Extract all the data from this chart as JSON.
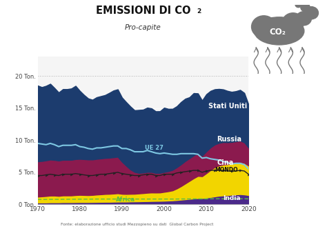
{
  "years": [
    1970,
    1971,
    1972,
    1973,
    1974,
    1975,
    1976,
    1977,
    1978,
    1979,
    1980,
    1981,
    1982,
    1983,
    1984,
    1985,
    1986,
    1987,
    1988,
    1989,
    1990,
    1991,
    1992,
    1993,
    1994,
    1995,
    1996,
    1997,
    1998,
    1999,
    2000,
    2001,
    2002,
    2003,
    2004,
    2005,
    2006,
    2007,
    2008,
    2009,
    2010,
    2011,
    2012,
    2013,
    2014,
    2015,
    2016,
    2017,
    2018,
    2019,
    2020
  ],
  "india": [
    0.3,
    0.3,
    0.3,
    0.32,
    0.32,
    0.32,
    0.34,
    0.34,
    0.34,
    0.35,
    0.36,
    0.36,
    0.36,
    0.37,
    0.38,
    0.39,
    0.4,
    0.4,
    0.42,
    0.43,
    0.44,
    0.44,
    0.46,
    0.47,
    0.48,
    0.5,
    0.51,
    0.53,
    0.54,
    0.55,
    0.57,
    0.6,
    0.63,
    0.68,
    0.74,
    0.8,
    0.86,
    0.92,
    0.98,
    0.98,
    1.05,
    1.15,
    1.25,
    1.35,
    1.4,
    1.45,
    1.5,
    1.55,
    1.6,
    1.55,
    1.45
  ],
  "china": [
    0.9,
    0.95,
    1.0,
    1.05,
    1.05,
    1.0,
    1.05,
    1.05,
    1.05,
    1.1,
    1.12,
    1.1,
    1.08,
    1.1,
    1.15,
    1.18,
    1.22,
    1.24,
    1.26,
    1.3,
    1.2,
    1.18,
    1.18,
    1.18,
    1.22,
    1.25,
    1.3,
    1.32,
    1.3,
    1.3,
    1.38,
    1.45,
    1.55,
    1.8,
    2.1,
    2.45,
    2.8,
    3.15,
    3.45,
    3.4,
    3.8,
    4.2,
    4.55,
    4.7,
    4.8,
    4.8,
    4.9,
    4.95,
    5.0,
    4.9,
    4.6
  ],
  "russia": [
    5.5,
    5.5,
    5.55,
    5.6,
    5.55,
    5.5,
    5.55,
    5.55,
    5.55,
    5.6,
    5.6,
    5.58,
    5.55,
    5.52,
    5.55,
    5.58,
    5.6,
    5.62,
    5.65,
    5.68,
    5.0,
    4.4,
    3.8,
    3.4,
    3.2,
    3.2,
    3.25,
    3.2,
    3.05,
    3.05,
    3.1,
    3.12,
    3.2,
    3.3,
    3.4,
    3.5,
    3.52,
    3.55,
    3.55,
    3.2,
    3.4,
    3.52,
    3.52,
    3.52,
    3.5,
    3.42,
    3.32,
    3.32,
    3.32,
    3.2,
    2.8
  ],
  "usa": [
    11.8,
    11.5,
    11.6,
    11.8,
    11.2,
    10.6,
    11.0,
    11.0,
    11.1,
    11.4,
    10.6,
    10.0,
    9.5,
    9.3,
    9.6,
    9.7,
    9.8,
    10.1,
    10.4,
    10.5,
    10.0,
    9.9,
    9.8,
    9.6,
    9.8,
    9.8,
    10.0,
    9.9,
    9.6,
    9.6,
    10.0,
    9.7,
    9.5,
    9.5,
    9.7,
    9.7,
    9.5,
    9.7,
    9.3,
    8.6,
    8.9,
    8.8,
    8.6,
    8.4,
    8.2,
    8.0,
    7.8,
    7.8,
    7.9,
    7.7,
    6.7
  ],
  "ue27": [
    9.5,
    9.4,
    9.3,
    9.5,
    9.3,
    9.0,
    9.2,
    9.2,
    9.2,
    9.3,
    9.0,
    8.9,
    8.7,
    8.6,
    8.8,
    8.8,
    8.9,
    9.0,
    9.1,
    9.1,
    8.7,
    8.7,
    8.5,
    8.2,
    8.2,
    8.2,
    8.4,
    8.2,
    8.0,
    7.9,
    8.0,
    7.9,
    7.8,
    7.8,
    7.9,
    7.9,
    7.9,
    7.9,
    7.8,
    7.2,
    7.3,
    7.1,
    7.0,
    6.9,
    6.7,
    6.5,
    6.3,
    6.4,
    6.4,
    6.2,
    5.5
  ],
  "mondo": [
    4.5,
    4.5,
    4.6,
    4.7,
    4.6,
    4.5,
    4.7,
    4.7,
    4.7,
    4.8,
    4.7,
    4.6,
    4.5,
    4.5,
    4.6,
    4.7,
    4.7,
    4.8,
    4.9,
    5.0,
    4.8,
    4.7,
    4.6,
    4.5,
    4.5,
    4.6,
    4.7,
    4.7,
    4.5,
    4.5,
    4.7,
    4.7,
    4.7,
    4.9,
    5.0,
    5.1,
    5.2,
    5.3,
    5.3,
    5.0,
    5.2,
    5.3,
    5.3,
    5.3,
    5.3,
    5.2,
    5.2,
    5.2,
    5.3,
    5.2,
    4.7
  ],
  "africa_line": [
    0.78,
    0.78,
    0.78,
    0.79,
    0.79,
    0.79,
    0.8,
    0.8,
    0.81,
    0.81,
    0.82,
    0.82,
    0.82,
    0.83,
    0.84,
    0.84,
    0.84,
    0.84,
    0.84,
    0.84,
    0.84,
    0.84,
    0.84,
    0.84,
    0.84,
    0.84,
    0.84,
    0.84,
    0.84,
    0.84,
    0.84,
    0.84,
    0.84,
    0.84,
    0.85,
    0.86,
    0.86,
    0.86,
    0.86,
    0.86,
    0.87,
    0.88,
    0.88,
    0.88,
    0.88,
    0.88,
    0.88,
    0.88,
    0.88,
    0.88,
    0.87
  ],
  "color_india": "#4b2a8a",
  "color_china": "#f2d500",
  "color_russia": "#8b1a4e",
  "color_usa": "#1c3c6e",
  "color_ue27": "#7ec8e3",
  "color_mondo": "#222222",
  "color_africa": "#5abf45",
  "color_bg": "#ffffff",
  "color_plot_bg": "#f5f5f5",
  "ylim": [
    0,
    23
  ],
  "xlim": [
    1970,
    2020
  ],
  "yticks": [
    0,
    5,
    10,
    15,
    20
  ],
  "ytick_labels": [
    "0 Ton.",
    "5 Ton.",
    "10 Ton.",
    "15 Ton.",
    "20 Ton."
  ],
  "xticks": [
    1970,
    1980,
    1990,
    2000,
    2010,
    2020
  ],
  "footer": "Fonte: elaborazione ufficio studi Mezzopieno su dati  Global Carbon Project"
}
